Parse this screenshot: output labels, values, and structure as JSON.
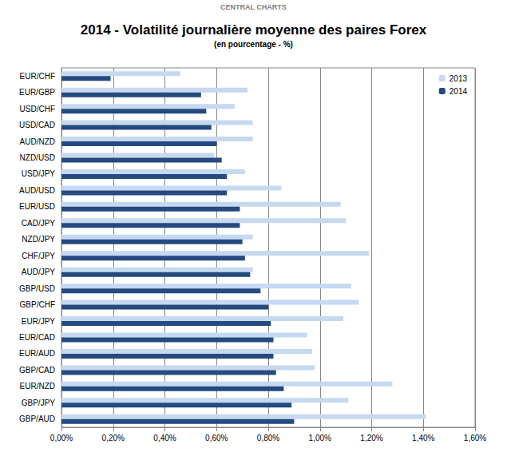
{
  "chart_data": {
    "type": "bar",
    "orientation": "horizontal",
    "title": "2014 - Volatilité journalière moyenne des paires Forex",
    "subtitle": "(en pourcentage - %)",
    "annotations": [
      "CENTRAL CHARTS"
    ],
    "categories": [
      "EUR/CHF",
      "EUR/GBP",
      "USD/CHF",
      "USD/CAD",
      "AUD/NZD",
      "NZD/USD",
      "USD/JPY",
      "AUD/USD",
      "EUR/USD",
      "CAD/JPY",
      "NZD/JPY",
      "CHF/JPY",
      "AUD/JPY",
      "GBP/USD",
      "GBP/CHF",
      "EUR/JPY",
      "EUR/CAD",
      "EUR/AUD",
      "GBP/CAD",
      "EUR/NZD",
      "GBP/JPY",
      "GBP/AUD"
    ],
    "series": [
      {
        "name": "2013",
        "color": "#c6d9f1",
        "values": [
          0.46,
          0.72,
          0.67,
          0.74,
          0.74,
          0.59,
          0.71,
          0.85,
          1.08,
          1.1,
          0.74,
          1.19,
          0.74,
          1.12,
          1.15,
          1.09,
          0.95,
          0.97,
          0.98,
          1.28,
          1.11,
          1.41
        ]
      },
      {
        "name": "2014",
        "color": "#254a7f",
        "values": [
          0.19,
          0.54,
          0.56,
          0.58,
          0.6,
          0.62,
          0.64,
          0.64,
          0.69,
          0.69,
          0.7,
          0.71,
          0.73,
          0.77,
          0.8,
          0.81,
          0.82,
          0.82,
          0.83,
          0.86,
          0.89,
          0.9
        ]
      }
    ],
    "xlim": [
      0,
      1.6
    ],
    "xticks": [
      {
        "value": 0,
        "label": "0,00%"
      },
      {
        "value": 0.2,
        "label": "0,20%"
      },
      {
        "value": 0.4,
        "label": "0,40%"
      },
      {
        "value": 0.6,
        "label": "0,60%"
      },
      {
        "value": 0.8,
        "label": "0,80%"
      },
      {
        "value": 1.0,
        "label": "1,00%"
      },
      {
        "value": 1.2,
        "label": "1,20%"
      },
      {
        "value": 1.4,
        "label": "1,40%"
      },
      {
        "value": 1.6,
        "label": "1,60%"
      }
    ],
    "grid": true,
    "legend": "top-right"
  }
}
